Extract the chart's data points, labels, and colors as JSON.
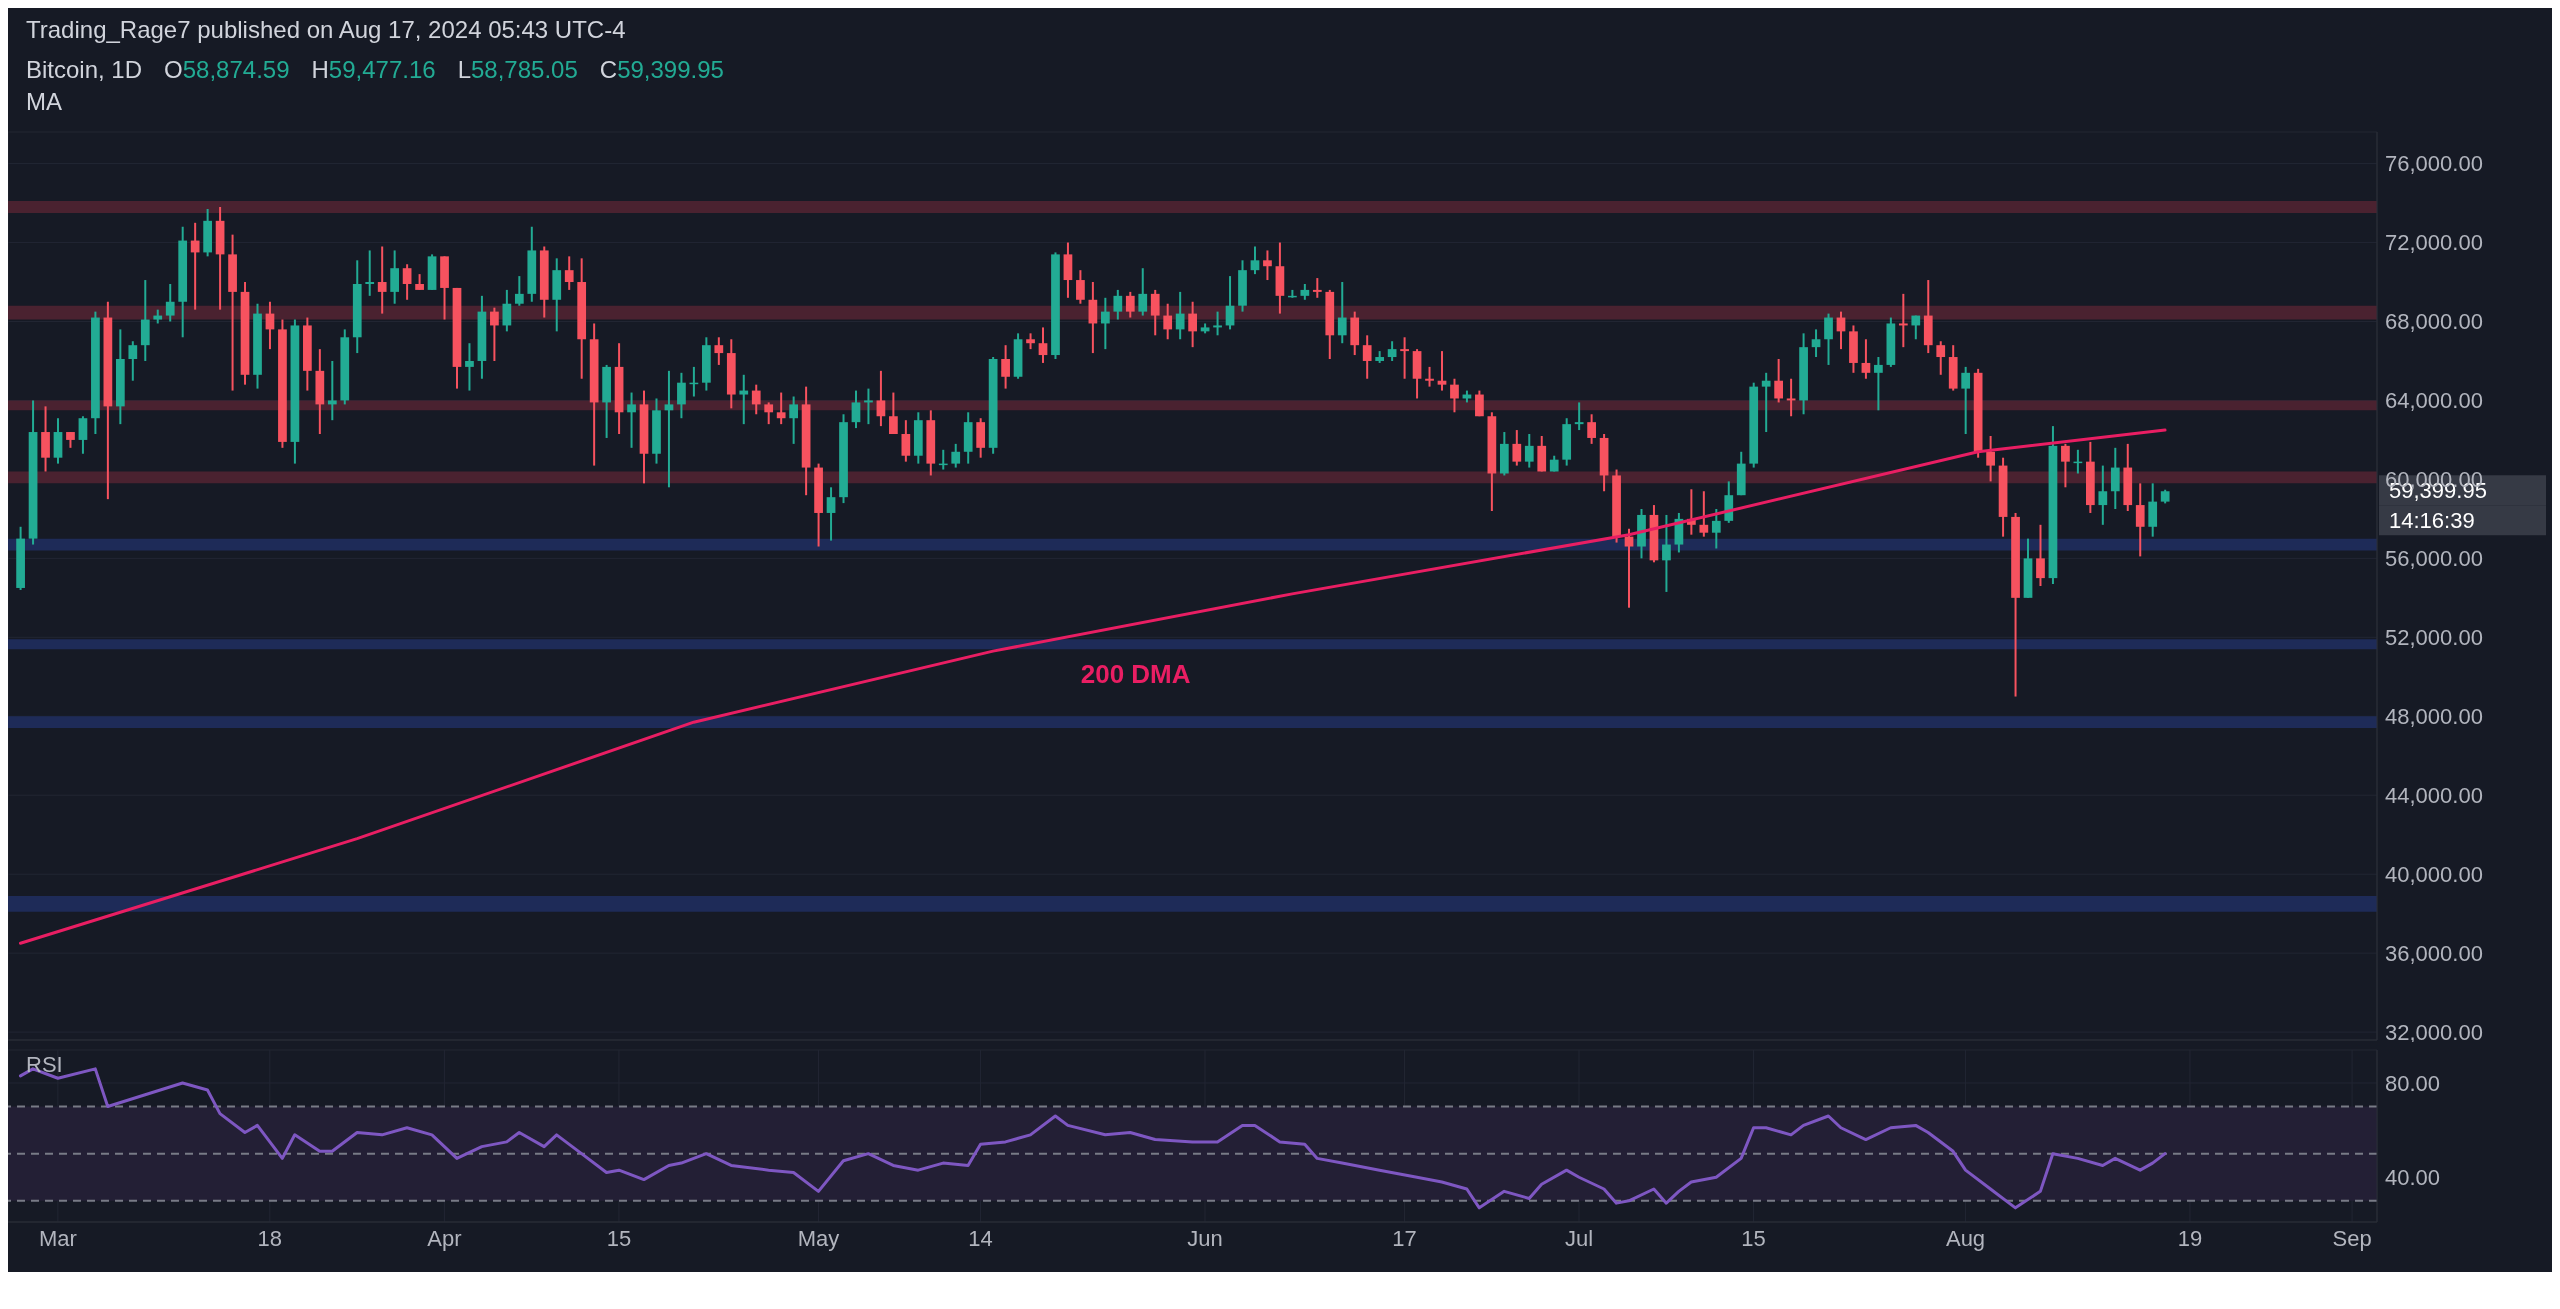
{
  "chart_data": [
    {
      "type": "candlestick",
      "title": "Bitcoin, 1D",
      "subtitle": "Trading_Rage7 published on Aug 17, 2024 05:43 UTC-4",
      "annotations": [
        "O58,874.59",
        "H59,477.16",
        "L58,785.05",
        "C59,399.95",
        "MA",
        "59,399.95",
        "14:16:39"
      ],
      "colors": [
        "#22ab94",
        "#22ab94",
        "#f7525f",
        "#22ab94",
        "#f7525f",
        "#22ab94",
        "#22ab94",
        "#f7525f",
        "#22ab94",
        "#22ab94",
        "#22ab94",
        "#22ab94",
        "#22ab94",
        "#22ab94",
        "#f7525f",
        "#22ab94",
        "#f7525f",
        "#f7525f",
        "#f7525f",
        "#22ab94",
        "#f7525f",
        "#f7525f",
        "#22ab94",
        "#f7525f",
        "#f7525f",
        "#22ab94",
        "#22ab94",
        "#22ab94",
        "#22ab94",
        "#f7525f",
        "#22ab94",
        "#f7525f",
        "#f7525f",
        "#22ab94",
        "#f7525f",
        "#f7525f",
        "#22ab94",
        "#22ab94",
        "#f7525f",
        "#22ab94",
        "#22ab94",
        "#22ab94",
        "#f7525f",
        "#22ab94",
        "#f7525f",
        "#f7525f",
        "#f7525f",
        "#22ab94",
        "#f7525f",
        "#22ab94",
        "#f7525f",
        "#22ab94",
        "#22ab94",
        "#22ab94",
        "#22ab94",
        "#22ab94",
        "#f7525f",
        "#f7525f",
        "#22ab94",
        "#f7525f",
        "#f7525f",
        "#f7525f",
        "#22ab94",
        "#f7525f",
        "#f7525f",
        "#22ab94",
        "#22ab94",
        "#22ab94",
        "#22ab94",
        "#f7525f",
        "#f7525f",
        "#f7525f",
        "#22ab94",
        "#f7525f",
        "#22ab94",
        "#22ab94",
        "#22ab94",
        "#f7525f",
        "#22ab94",
        "#f7525f",
        "#22ab94",
        "#f7525f",
        "#f7525f",
        "#22ab94",
        "#f7525f",
        "#f7525f",
        "#f7525f",
        "#22ab94",
        "#22ab94",
        "#f7525f",
        "#22ab94",
        "#f7525f",
        "#f7525f",
        "#22ab94",
        "#f7525f",
        "#22ab94",
        "#22ab94",
        "#22ab94",
        "#22ab94",
        "#22ab94",
        "#f7525f",
        "#f7525f",
        "#22ab94",
        "#22ab94",
        "#f7525f",
        "#f7525f",
        "#22ab94",
        "#f7525f",
        "#f7525f",
        "#22ab94",
        "#22ab94",
        "#f7525f",
        "#f7525f",
        "#f7525f",
        "#f7525f",
        "#f7525f",
        "#22ab94",
        "#f7525f",
        "#f7525f",
        "#22ab94",
        "#f7525f",
        "#22ab94",
        "#f7525f",
        "#22ab94",
        "#22ab94",
        "#22ab94",
        "#f7525f",
        "#f7525f",
        "#f7525f",
        "#f7525f",
        "#22ab94",
        "#f7525f",
        "#22ab94",
        "#22ab94",
        "#f7525f",
        "#f7525f",
        "#22ab94",
        "#22ab94",
        "#22ab94",
        "#22ab94",
        "#22ab94",
        "#f7525f",
        "#f7525f",
        "#22ab94",
        "#22ab94",
        "#22ab94",
        "#f7525f",
        "#f7525f",
        "#f7525f",
        "#22ab94",
        "#22ab94",
        "#f7525f",
        "#22ab94",
        "#f7525f",
        "#f7525f",
        "#f7525f",
        "#22ab94",
        "#f7525f",
        "#f7525f",
        "#f7525f",
        "#f7525f",
        "#22ab94",
        "#f7525f",
        "#22ab94",
        "#f7525f",
        "#22ab94",
        "#f7525f",
        "#22ab94",
        "#22ab94",
        "#f7525f",
        "#f7525f",
        "#22ab94",
        "#22ab94"
      ],
      "x": [
        "2024-02-27",
        "2024-02-28",
        "2024-02-29",
        "2024-03-01",
        "2024-03-02",
        "2024-03-03",
        "2024-03-04",
        "2024-03-05",
        "2024-03-06",
        "2024-03-07",
        "2024-03-08",
        "2024-03-09",
        "2024-03-10",
        "2024-03-11",
        "2024-03-12",
        "2024-03-13",
        "2024-03-14",
        "2024-03-15",
        "2024-03-16",
        "2024-03-17",
        "2024-03-18",
        "2024-03-19",
        "2024-03-20",
        "2024-03-21",
        "2024-03-22",
        "2024-03-23",
        "2024-03-24",
        "2024-03-25",
        "2024-03-26",
        "2024-03-27",
        "2024-03-28",
        "2024-03-29",
        "2024-03-30",
        "2024-03-31",
        "2024-04-01",
        "2024-04-02",
        "2024-04-03",
        "2024-04-04",
        "2024-04-05",
        "2024-04-06",
        "2024-04-07",
        "2024-04-08",
        "2024-04-09",
        "2024-04-10",
        "2024-04-11",
        "2024-04-12",
        "2024-04-13",
        "2024-04-14",
        "2024-04-15",
        "2024-04-16",
        "2024-04-17",
        "2024-04-18",
        "2024-04-19",
        "2024-04-20",
        "2024-04-21",
        "2024-04-22",
        "2024-04-23",
        "2024-04-24",
        "2024-04-25",
        "2024-04-26",
        "2024-04-27",
        "2024-04-28",
        "2024-04-29",
        "2024-04-30",
        "2024-05-01",
        "2024-05-02",
        "2024-05-03",
        "2024-05-04",
        "2024-05-05",
        "2024-05-06",
        "2024-05-07",
        "2024-05-08",
        "2024-05-09",
        "2024-05-10",
        "2024-05-11",
        "2024-05-12",
        "2024-05-13",
        "2024-05-14",
        "2024-05-15",
        "2024-05-16",
        "2024-05-17",
        "2024-05-18",
        "2024-05-19",
        "2024-05-20",
        "2024-05-21",
        "2024-05-22",
        "2024-05-23",
        "2024-05-24",
        "2024-05-25",
        "2024-05-26",
        "2024-05-27",
        "2024-05-28",
        "2024-05-29",
        "2024-05-30",
        "2024-05-31",
        "2024-06-01",
        "2024-06-02",
        "2024-06-03",
        "2024-06-04",
        "2024-06-05",
        "2024-06-06",
        "2024-06-07",
        "2024-06-08",
        "2024-06-09",
        "2024-06-10",
        "2024-06-11",
        "2024-06-12",
        "2024-06-13",
        "2024-06-14",
        "2024-06-15",
        "2024-06-16",
        "2024-06-17",
        "2024-06-18",
        "2024-06-19",
        "2024-06-20",
        "2024-06-21",
        "2024-06-22",
        "2024-06-23",
        "2024-06-24",
        "2024-06-25",
        "2024-06-26",
        "2024-06-27",
        "2024-06-28",
        "2024-06-29",
        "2024-06-30",
        "2024-07-01",
        "2024-07-02",
        "2024-07-03",
        "2024-07-04",
        "2024-07-05",
        "2024-07-06",
        "2024-07-07",
        "2024-07-08",
        "2024-07-09",
        "2024-07-10",
        "2024-07-11",
        "2024-07-12",
        "2024-07-13",
        "2024-07-14",
        "2024-07-15",
        "2024-07-16",
        "2024-07-17",
        "2024-07-18",
        "2024-07-19",
        "2024-07-20",
        "2024-07-21",
        "2024-07-22",
        "2024-07-23",
        "2024-07-24",
        "2024-07-25",
        "2024-07-26",
        "2024-07-27",
        "2024-07-28",
        "2024-07-29",
        "2024-07-30",
        "2024-07-31",
        "2024-08-01",
        "2024-08-02",
        "2024-08-03",
        "2024-08-04",
        "2024-08-05",
        "2024-08-06",
        "2024-08-07",
        "2024-08-08",
        "2024-08-09",
        "2024-08-10",
        "2024-08-11",
        "2024-08-12",
        "2024-08-13",
        "2024-08-14",
        "2024-08-15",
        "2024-08-16",
        "2024-08-17"
      ],
      "ohlc": [
        [
          54500,
          57600,
          54400,
          57000
        ],
        [
          57000,
          64000,
          56700,
          62400
        ],
        [
          62400,
          63700,
          60400,
          61100
        ],
        [
          61100,
          63100,
          60800,
          62400
        ],
        [
          62400,
          62400,
          61600,
          62000
        ],
        [
          62000,
          63200,
          61300,
          63100
        ],
        [
          63100,
          68500,
          62300,
          68200
        ],
        [
          68200,
          69000,
          59000,
          63700
        ],
        [
          63700,
          67600,
          62800,
          66100
        ],
        [
          66100,
          67000,
          65000,
          66800
        ],
        [
          66800,
          70100,
          66000,
          68100
        ],
        [
          68100,
          68600,
          67900,
          68300
        ],
        [
          68300,
          69900,
          68000,
          69000
        ],
        [
          69000,
          72800,
          67200,
          72100
        ],
        [
          72100,
          73000,
          68600,
          71500
        ],
        [
          71500,
          73700,
          71300,
          73100
        ],
        [
          73100,
          73800,
          68600,
          71400
        ],
        [
          71400,
          72400,
          64500,
          69500
        ],
        [
          69500,
          70000,
          64800,
          65300
        ],
        [
          65300,
          68900,
          64600,
          68400
        ],
        [
          68400,
          69000,
          66600,
          67600
        ],
        [
          67600,
          68100,
          61600,
          61900
        ],
        [
          61900,
          68100,
          60800,
          67800
        ],
        [
          67800,
          68200,
          64500,
          65500
        ],
        [
          65500,
          66600,
          62300,
          63800
        ],
        [
          63800,
          66000,
          63000,
          64000
        ],
        [
          64000,
          67600,
          63800,
          67200
        ],
        [
          67200,
          71100,
          66400,
          69900
        ],
        [
          69900,
          71600,
          69300,
          70000
        ],
        [
          70000,
          71800,
          68400,
          69500
        ],
        [
          69500,
          71600,
          68900,
          70700
        ],
        [
          70700,
          70900,
          69100,
          69900
        ],
        [
          69900,
          70400,
          69600,
          69600
        ],
        [
          69600,
          71400,
          69600,
          71300
        ],
        [
          71300,
          71300,
          68100,
          69700
        ],
        [
          69700,
          69700,
          64600,
          65700
        ],
        [
          65700,
          66900,
          64500,
          66000
        ],
        [
          66000,
          69300,
          65100,
          68500
        ],
        [
          68500,
          68700,
          66000,
          67800
        ],
        [
          67800,
          69600,
          67500,
          68900
        ],
        [
          68900,
          70300,
          68800,
          69400
        ],
        [
          69400,
          72800,
          69000,
          71600
        ],
        [
          71600,
          71800,
          68200,
          69100
        ],
        [
          69100,
          71200,
          67500,
          70600
        ],
        [
          70600,
          71300,
          69600,
          70000
        ],
        [
          70000,
          71200,
          65100,
          67100
        ],
        [
          67100,
          67900,
          60700,
          63900
        ],
        [
          63900,
          65800,
          62100,
          65700
        ],
        [
          65700,
          66900,
          62300,
          63400
        ],
        [
          63400,
          64400,
          61600,
          63800
        ],
        [
          63800,
          64500,
          59800,
          61300
        ],
        [
          61300,
          64100,
          60800,
          63500
        ],
        [
          63500,
          65500,
          59600,
          63800
        ],
        [
          63800,
          65400,
          63100,
          64900
        ],
        [
          64900,
          65700,
          64200,
          64900
        ],
        [
          64900,
          67200,
          64500,
          66800
        ],
        [
          66800,
          67200,
          65800,
          66400
        ],
        [
          66400,
          67100,
          63600,
          64300
        ],
        [
          64300,
          65300,
          62800,
          64500
        ],
        [
          64500,
          64800,
          63300,
          63800
        ],
        [
          63800,
          63900,
          62800,
          63400
        ],
        [
          63400,
          64400,
          62800,
          63100
        ],
        [
          63100,
          64200,
          61800,
          63800
        ],
        [
          63800,
          64700,
          59200,
          60600
        ],
        [
          60600,
          60800,
          56600,
          58300
        ],
        [
          58300,
          59600,
          56900,
          59100
        ],
        [
          59100,
          63300,
          58800,
          62900
        ],
        [
          62900,
          64500,
          62600,
          63900
        ],
        [
          63900,
          64600,
          62800,
          64000
        ],
        [
          64000,
          65500,
          62700,
          63200
        ],
        [
          63200,
          64400,
          62300,
          62300
        ],
        [
          62300,
          63000,
          60900,
          61200
        ],
        [
          61200,
          63400,
          60800,
          63000
        ],
        [
          63000,
          63500,
          60200,
          60800
        ],
        [
          60800,
          61500,
          60500,
          60800
        ],
        [
          60800,
          61800,
          60600,
          61400
        ],
        [
          61400,
          63400,
          60800,
          62900
        ],
        [
          62900,
          63100,
          61100,
          61600
        ],
        [
          61600,
          66200,
          61300,
          66100
        ],
        [
          66100,
          66800,
          64600,
          65200
        ],
        [
          65200,
          67400,
          65100,
          67100
        ],
        [
          67100,
          67400,
          66600,
          66900
        ],
        [
          66900,
          67700,
          65900,
          66300
        ],
        [
          66300,
          71500,
          66100,
          71400
        ],
        [
          71400,
          72000,
          69200,
          70100
        ],
        [
          70100,
          70600,
          68900,
          69100
        ],
        [
          69100,
          70000,
          66400,
          67900
        ],
        [
          67900,
          69200,
          66600,
          68500
        ],
        [
          68500,
          69600,
          68100,
          69300
        ],
        [
          69300,
          69500,
          68200,
          68500
        ],
        [
          68500,
          70700,
          68300,
          69400
        ],
        [
          69400,
          69600,
          67300,
          68300
        ],
        [
          68300,
          68900,
          67100,
          67600
        ],
        [
          67600,
          69500,
          67100,
          68400
        ],
        [
          68400,
          69000,
          66700,
          67500
        ],
        [
          67500,
          67900,
          67400,
          67700
        ],
        [
          67700,
          68500,
          67300,
          67800
        ],
        [
          67800,
          70300,
          67600,
          68800
        ],
        [
          68800,
          71100,
          68500,
          70600
        ],
        [
          70600,
          71800,
          70400,
          71100
        ],
        [
          71100,
          71600,
          70100,
          70800
        ],
        [
          70800,
          72000,
          68400,
          69300
        ],
        [
          69300,
          69600,
          69200,
          69300
        ],
        [
          69300,
          69900,
          69100,
          69600
        ],
        [
          69600,
          70200,
          69200,
          69500
        ],
        [
          69500,
          69600,
          66100,
          67300
        ],
        [
          67300,
          70000,
          66900,
          68200
        ],
        [
          68200,
          68500,
          66300,
          66800
        ],
        [
          66800,
          67300,
          65100,
          66000
        ],
        [
          66000,
          66500,
          65900,
          66200
        ],
        [
          66200,
          67000,
          66000,
          66600
        ],
        [
          66600,
          67200,
          65100,
          66500
        ],
        [
          66500,
          66600,
          64100,
          65100
        ],
        [
          65100,
          65700,
          64700,
          65000
        ],
        [
          65000,
          66500,
          64500,
          64800
        ],
        [
          64800,
          65100,
          63400,
          64100
        ],
        [
          64100,
          64500,
          63900,
          64300
        ],
        [
          64300,
          64500,
          63200,
          63200
        ],
        [
          63200,
          63400,
          58400,
          60300
        ],
        [
          60300,
          62400,
          60200,
          61800
        ],
        [
          61800,
          62500,
          60700,
          60900
        ],
        [
          60900,
          62300,
          60600,
          61700
        ],
        [
          61700,
          62200,
          60400,
          60400
        ],
        [
          60400,
          61200,
          60400,
          61000
        ],
        [
          61000,
          63100,
          60700,
          62800
        ],
        [
          62800,
          63900,
          62500,
          62900
        ],
        [
          62900,
          63300,
          61800,
          62100
        ],
        [
          62100,
          62300,
          59400,
          60200
        ],
        [
          60200,
          60500,
          56800,
          57100
        ],
        [
          57100,
          57500,
          53500,
          56600
        ],
        [
          56600,
          58500,
          56000,
          58200
        ],
        [
          58200,
          58700,
          55800,
          55900
        ],
        [
          55900,
          58200,
          54300,
          56700
        ],
        [
          56700,
          58300,
          56300,
          58000
        ],
        [
          58000,
          59500,
          57200,
          57700
        ],
        [
          57700,
          59400,
          57100,
          57300
        ],
        [
          57300,
          58500,
          56500,
          57900
        ],
        [
          57900,
          59900,
          57800,
          59200
        ],
        [
          59200,
          61400,
          59200,
          60800
        ],
        [
          60800,
          64900,
          60600,
          64700
        ],
        [
          64700,
          65400,
          62400,
          65000
        ],
        [
          65000,
          66100,
          63900,
          64100
        ],
        [
          64100,
          65100,
          63200,
          64000
        ],
        [
          64000,
          67400,
          63300,
          66700
        ],
        [
          66700,
          67600,
          66200,
          67100
        ],
        [
          67100,
          68400,
          65800,
          68200
        ],
        [
          68200,
          68500,
          66600,
          67500
        ],
        [
          67500,
          67800,
          65400,
          65900
        ],
        [
          65900,
          67100,
          65100,
          65400
        ],
        [
          65400,
          66200,
          63500,
          65800
        ],
        [
          65800,
          68200,
          65700,
          67900
        ],
        [
          67900,
          69400,
          66700,
          67800
        ],
        [
          67800,
          68300,
          67100,
          68300
        ],
        [
          68300,
          70100,
          66400,
          66800
        ],
        [
          66800,
          67000,
          65300,
          66200
        ],
        [
          66200,
          66800,
          64500,
          64600
        ],
        [
          64600,
          65700,
          62300,
          65400
        ],
        [
          65400,
          65600,
          61100,
          61400
        ],
        [
          61400,
          62200,
          59900,
          60700
        ],
        [
          60700,
          61100,
          57100,
          58100
        ],
        [
          58100,
          58300,
          49000,
          54000
        ],
        [
          54000,
          57000,
          54000,
          56000
        ],
        [
          56000,
          57700,
          54600,
          55000
        ],
        [
          55000,
          62700,
          54700,
          61700
        ],
        [
          61700,
          61800,
          59600,
          60900
        ],
        [
          60900,
          61500,
          60300,
          60900
        ],
        [
          60900,
          61900,
          58300,
          58700
        ],
        [
          58700,
          60700,
          57700,
          59400
        ],
        [
          59400,
          61600,
          58500,
          60600
        ],
        [
          60600,
          61800,
          58400,
          58700
        ],
        [
          58700,
          59800,
          56100,
          57600
        ],
        [
          57600,
          59800,
          57100,
          58874.59
        ],
        [
          58874.59,
          59477.16,
          58785.05,
          59399.95
        ]
      ],
      "series": [
        {
          "type": "line",
          "name": "200 DMA",
          "color": "#e91e63",
          "x": [
            "2024-02-27",
            "2024-03-25",
            "2024-04-21",
            "2024-05-15",
            "2024-06-08",
            "2024-07-05",
            "2024-08-02",
            "2024-08-17"
          ],
          "values": [
            36500,
            41800,
            47700,
            51300,
            54200,
            57200,
            61400,
            62500
          ]
        }
      ],
      "bands": [
        {
          "axis": "y",
          "from": 73500,
          "to": 74100,
          "color": "#4a2230"
        },
        {
          "axis": "y",
          "from": 68100,
          "to": 68800,
          "color": "#4a2230"
        },
        {
          "axis": "y",
          "from": 63500,
          "to": 64000,
          "color": "#4a2230"
        },
        {
          "axis": "y",
          "from": 59800,
          "to": 60400,
          "color": "#4a2230"
        },
        {
          "axis": "y",
          "from": 56400,
          "to": 57000,
          "color": "#1e2b58"
        },
        {
          "axis": "y",
          "from": 51400,
          "to": 51900,
          "color": "#1e2b58"
        },
        {
          "axis": "y",
          "from": 47400,
          "to": 48000,
          "color": "#1e2b58"
        },
        {
          "axis": "y",
          "from": 38100,
          "to": 38900,
          "color": "#1e2b58"
        }
      ],
      "xlim": [
        "2024-02-26",
        "2024-09-03"
      ],
      "xticks": [
        {
          "value": "2024-03-01",
          "label": null
        },
        {
          "value": "2024-03-18",
          "label": null
        },
        {
          "value": "2024-04-01",
          "label": null
        },
        {
          "value": "2024-04-15",
          "label": null
        },
        {
          "value": "2024-05-01",
          "label": null
        },
        {
          "value": "2024-05-14",
          "label": null
        },
        {
          "value": "2024-06-01",
          "label": null
        },
        {
          "value": "2024-06-17",
          "label": null
        },
        {
          "value": "2024-07-01",
          "label": null
        },
        {
          "value": "2024-07-15",
          "label": null
        },
        {
          "value": "2024-08-01",
          "label": null
        },
        {
          "value": "2024-08-19",
          "label": null
        },
        {
          "value": "2024-09-01",
          "label": null
        }
      ],
      "ylim": [
        31600,
        77600
      ],
      "yticks": [
        {
          "value": 32000,
          "label": "32,000.00"
        },
        {
          "value": 36000,
          "label": "36,000.00"
        },
        {
          "value": 40000,
          "label": "40,000.00"
        },
        {
          "value": 44000,
          "label": "44,000.00"
        },
        {
          "value": 48000,
          "label": "48,000.00"
        },
        {
          "value": 52000,
          "label": "52,000.00"
        },
        {
          "value": 56000,
          "label": "56,000.00"
        },
        {
          "value": 60000,
          "label": "60,000.00"
        },
        {
          "value": 64000,
          "label": "64,000.00"
        },
        {
          "value": 68000,
          "label": "68,000.00"
        },
        {
          "value": 72000,
          "label": "72,000.00"
        },
        {
          "value": 76000,
          "label": "76,000.00"
        }
      ],
      "grid": true,
      "tick_labels": "y"
    },
    {
      "type": "line",
      "title": "RSI",
      "color": "#7e57c2",
      "x": [
        "2024-02-27",
        "2024-02-28",
        "2024-03-01",
        "2024-03-04",
        "2024-03-05",
        "2024-03-08",
        "2024-03-11",
        "2024-03-13",
        "2024-03-14",
        "2024-03-16",
        "2024-03-17",
        "2024-03-19",
        "2024-03-20",
        "2024-03-22",
        "2024-03-23",
        "2024-03-25",
        "2024-03-27",
        "2024-03-29",
        "2024-03-31",
        "2024-04-02",
        "2024-04-04",
        "2024-04-06",
        "2024-04-07",
        "2024-04-09",
        "2024-04-10",
        "2024-04-12",
        "2024-04-14",
        "2024-04-15",
        "2024-04-17",
        "2024-04-19",
        "2024-04-20",
        "2024-04-22",
        "2024-04-24",
        "2024-04-27",
        "2024-04-29",
        "2024-05-01",
        "2024-05-03",
        "2024-05-05",
        "2024-05-07",
        "2024-05-09",
        "2024-05-11",
        "2024-05-13",
        "2024-05-14",
        "2024-05-16",
        "2024-05-18",
        "2024-05-20",
        "2024-05-21",
        "2024-05-24",
        "2024-05-26",
        "2024-05-28",
        "2024-05-31",
        "2024-06-02",
        "2024-06-04",
        "2024-06-05",
        "2024-06-07",
        "2024-06-09",
        "2024-06-10",
        "2024-06-12",
        "2024-06-15",
        "2024-06-18",
        "2024-06-20",
        "2024-06-22",
        "2024-06-23",
        "2024-06-25",
        "2024-06-27",
        "2024-06-28",
        "2024-06-30",
        "2024-07-01",
        "2024-07-03",
        "2024-07-04",
        "2024-07-05",
        "2024-07-07",
        "2024-07-08",
        "2024-07-09",
        "2024-07-10",
        "2024-07-12",
        "2024-07-14",
        "2024-07-15",
        "2024-07-16",
        "2024-07-18",
        "2024-07-19",
        "2024-07-21",
        "2024-07-22",
        "2024-07-24",
        "2024-07-26",
        "2024-07-28",
        "2024-07-29",
        "2024-07-31",
        "2024-08-01",
        "2024-08-03",
        "2024-08-05",
        "2024-08-07",
        "2024-08-08",
        "2024-08-10",
        "2024-08-12",
        "2024-08-13",
        "2024-08-15",
        "2024-08-16",
        "2024-08-17"
      ],
      "values": [
        83,
        86,
        82,
        86,
        70,
        75,
        80,
        77,
        67,
        59,
        62,
        48,
        58,
        51,
        51,
        59,
        58,
        61,
        58,
        48,
        53,
        55,
        59,
        53,
        58,
        50,
        42,
        43,
        39,
        45,
        46,
        50,
        45,
        43,
        42,
        34,
        47,
        50,
        45,
        43,
        46,
        45,
        54,
        55,
        58,
        66,
        62,
        58,
        59,
        56,
        55,
        55,
        62,
        62,
        55,
        54,
        48,
        46,
        43,
        40,
        38,
        35,
        27,
        34,
        31,
        37,
        43,
        40,
        35,
        29,
        30,
        35,
        29,
        34,
        38,
        40,
        48,
        61,
        61,
        58,
        62,
        66,
        61,
        56,
        61,
        62,
        59,
        51,
        43,
        35,
        27,
        34,
        50,
        48,
        45,
        48,
        43,
        46,
        50
      ],
      "ref_lines": [
        {
          "axis": "y",
          "value": 70,
          "line_style": "dashed",
          "color": "#787b86"
        },
        {
          "axis": "y",
          "value": 50,
          "line_style": "dashed",
          "color": "#787b86"
        },
        {
          "axis": "y",
          "value": 30,
          "line_style": "dashed",
          "color": "#787b86"
        }
      ],
      "bands": [
        {
          "axis": "y",
          "from": 30,
          "to": 70,
          "color": "#231f35"
        }
      ],
      "xlim": [
        "2024-02-26",
        "2024-09-03"
      ],
      "xticks": [
        {
          "value": "2024-03-01",
          "label": "Mar"
        },
        {
          "value": "2024-03-18",
          "label": "18"
        },
        {
          "value": "2024-04-01",
          "label": "Apr"
        },
        {
          "value": "2024-04-15",
          "label": "15"
        },
        {
          "value": "2024-05-01",
          "label": "May"
        },
        {
          "value": "2024-05-14",
          "label": "14"
        },
        {
          "value": "2024-06-01",
          "label": "Jun"
        },
        {
          "value": "2024-06-17",
          "label": "17"
        },
        {
          "value": "2024-07-01",
          "label": "Jul"
        },
        {
          "value": "2024-07-15",
          "label": "15"
        },
        {
          "value": "2024-08-01",
          "label": "Aug"
        },
        {
          "value": "2024-08-19",
          "label": "19"
        },
        {
          "value": "2024-09-01",
          "label": "Sep"
        }
      ],
      "ylim": [
        21,
        94
      ],
      "yticks": [
        {
          "value": 40,
          "label": "40.00"
        },
        {
          "value": 80,
          "label": "80.00"
        }
      ],
      "grid": true
    }
  ]
}
